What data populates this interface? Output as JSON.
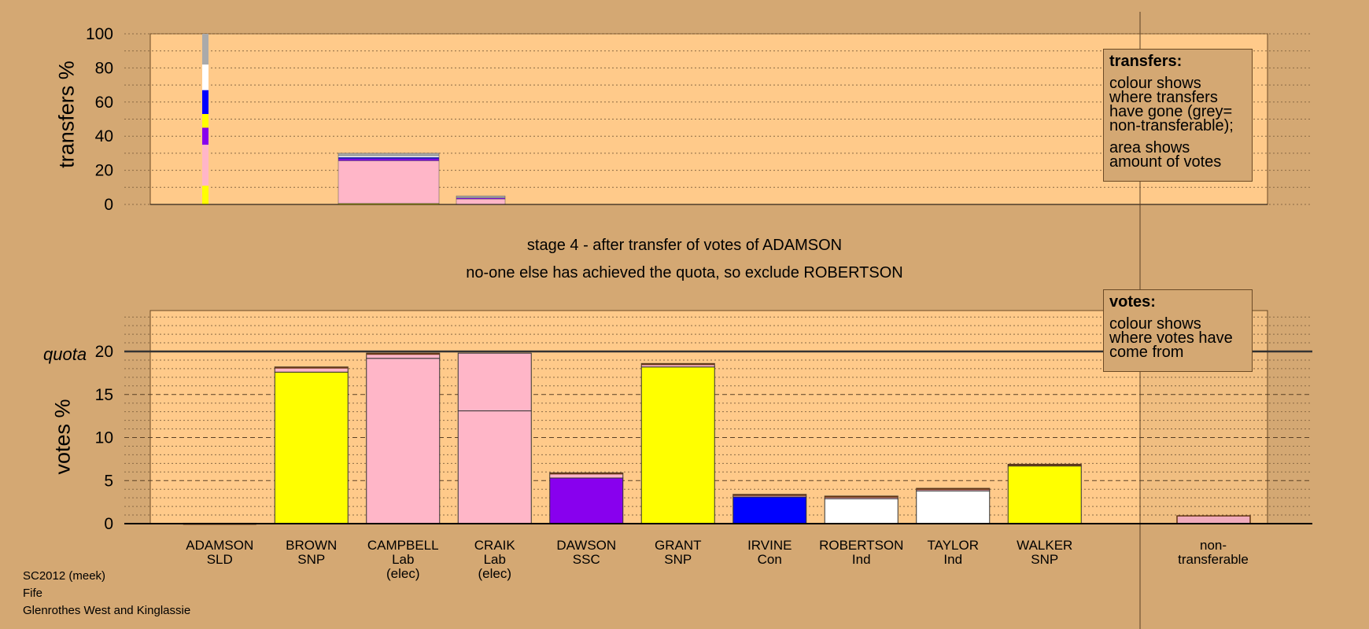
{
  "stage_title": "stage 4 - after transfer of votes of ADAMSON",
  "stage_note": "no-one else has achieved the quota, so exclude ROBERTSON",
  "legends": {
    "transfers": {
      "title": "transfers:",
      "line1": "colour shows where transfers have gone (grey= non-transferable);",
      "line2": "area shows amount of votes"
    },
    "votes": {
      "title": "votes:",
      "line1": "colour shows where votes have come from"
    }
  },
  "footer": {
    "election": "SC2012 (meek)",
    "council": "Fife",
    "ward": "Glenrothes West and Kinglassie"
  },
  "colors": {
    "background": "#d4a873",
    "plot": "#ffca8a",
    "SLD": "#ffff00",
    "SNP": "#ffff00",
    "Lab": "#ffb6c8",
    "SSC": "#8800ee",
    "Con": "#0000ff",
    "Ind": "#ffffff",
    "non_transferable": "#aaaaaa"
  },
  "chart_data": [
    {
      "type": "bar",
      "title": "",
      "ylabel": "transfers %",
      "ylim": [
        0,
        100
      ],
      "yticks": [
        0,
        20,
        40,
        60,
        80,
        100
      ],
      "transfer_source": {
        "name": "ADAMSON",
        "segments": [
          {
            "to": "SNP",
            "value": 11
          },
          {
            "to": "Lab",
            "value": 24
          },
          {
            "to": "SSC",
            "value": 10
          },
          {
            "to": "SNP",
            "value": 8
          },
          {
            "to": "Con",
            "value": 14
          },
          {
            "to": "Ind",
            "value": 15
          },
          {
            "to": "non_transferable",
            "value": 18
          }
        ]
      },
      "transfer_blocks": [
        {
          "slot": 3,
          "label": "CAMPBELL",
          "height": 30,
          "segments": [
            {
              "color": "#ffff00",
              "value": 0.6
            },
            {
              "color": "#ffb6c8",
              "value": 25
            },
            {
              "color": "#8800ee",
              "value": 1.2
            },
            {
              "color": "#0000ff",
              "value": 0.8
            },
            {
              "color": "#ffffff",
              "value": 1
            },
            {
              "color": "#aaaaaa",
              "value": 1.4
            }
          ]
        },
        {
          "slot": 4,
          "label": "CRAIK",
          "height": 5,
          "segments": [
            {
              "color": "#ffb6c8",
              "value": 3.2
            },
            {
              "color": "#8800ee",
              "value": 0.6
            },
            {
              "color": "#aaaaaa",
              "value": 1.2
            }
          ]
        }
      ]
    },
    {
      "type": "bar",
      "title": "",
      "ylabel": "votes %",
      "ylim": [
        0,
        25
      ],
      "yticks": [
        0,
        5,
        10,
        15,
        20
      ],
      "quota": 20,
      "quota_label": "quota",
      "candidates": [
        {
          "name": "ADAMSON",
          "party": "SLD",
          "note": "",
          "base": 0,
          "transfers": 0.05,
          "color": "#ffff00"
        },
        {
          "name": "BROWN",
          "party": "SNP",
          "note": "",
          "base": 17.6,
          "transfers": 0.6,
          "color": "#ffff00"
        },
        {
          "name": "CAMPBELL",
          "party": "Lab",
          "note": "(elec)",
          "base": 19.2,
          "transfers": 0.6,
          "color": "#ffb6c8"
        },
        {
          "name": "CRAIK",
          "party": "Lab",
          "note": "(elec)",
          "base": 13.1,
          "transfers": 6.7,
          "color": "#ffb6c8"
        },
        {
          "name": "DAWSON",
          "party": "SSC",
          "note": "",
          "base": 5.3,
          "transfers": 0.6,
          "color": "#8800ee"
        },
        {
          "name": "GRANT",
          "party": "SNP",
          "note": "",
          "base": 18.2,
          "transfers": 0.4,
          "color": "#ffff00"
        },
        {
          "name": "IRVINE",
          "party": "Con",
          "note": "",
          "base": 3.1,
          "transfers": 0.3,
          "color": "#0000ff"
        },
        {
          "name": "ROBERTSON",
          "party": "Ind",
          "note": "",
          "base": 2.9,
          "transfers": 0.3,
          "color": "#ffffff"
        },
        {
          "name": "TAYLOR",
          "party": "Ind",
          "note": "",
          "base": 3.8,
          "transfers": 0.3,
          "color": "#ffffff"
        },
        {
          "name": "WALKER",
          "party": "SNP",
          "note": "",
          "base": 6.7,
          "transfers": 0.2,
          "color": "#ffff00"
        }
      ],
      "non_transferable": {
        "label": "non-\ntransferable",
        "value": 0.9
      }
    }
  ]
}
